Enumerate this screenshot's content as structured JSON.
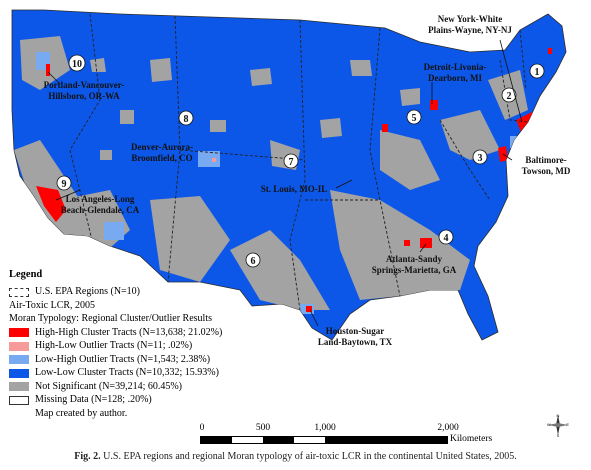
{
  "map": {
    "region_numbers": [
      "1",
      "2",
      "3",
      "4",
      "5",
      "6",
      "7",
      "8",
      "9",
      "10"
    ],
    "labels": {
      "new_york": [
        "New York-White",
        "Plains-Wayne, NY-NJ"
      ],
      "detroit": [
        "Detroit-Livonia-",
        "Dearborn, MI"
      ],
      "baltimore": [
        "Baltimore-",
        "Towson, MD"
      ],
      "atlanta": [
        "Atlanta-Sandy",
        "Springs-Marietta, GA"
      ],
      "houston": [
        "Houston-Sugar",
        "Land-Baytown, TX"
      ],
      "st_louis": [
        "St. Louis, MO-IL"
      ],
      "denver": [
        "Denver-Aurora-",
        "Broomfield, CO"
      ],
      "los_angeles": [
        "Los Angeles-Long",
        "Beach-Glendale, CA"
      ],
      "portland": [
        "Portland-Vancouver-",
        "Hillsboro, OR-WA"
      ]
    },
    "colors": {
      "high_high": "#ff0000",
      "high_low": "#f79a9a",
      "low_high": "#78aaf2",
      "low_low": "#0c57e8",
      "not_significant": "#a3a3a3",
      "missing": "#ffffff"
    }
  },
  "legend": {
    "title": "Legend",
    "regions": "U.S. EPA Regions (N=10)",
    "dataset": "Air-Toxic LCR, 2005",
    "typology": "Moran Typology: Regional Cluster/Outlier Results",
    "items": [
      {
        "label": "High-High Cluster Tracts (N=13,638; 21.02%)",
        "color": "#ff0000"
      },
      {
        "label": "High-Low Outlier Tracts (N=11; .02%)",
        "color": "#f79a9a"
      },
      {
        "label": "Low-High Outlier Tracts (N=1,543; 2.38%)",
        "color": "#78aaf2"
      },
      {
        "label": "Low-Low Cluster Tracts (N=10,332; 15.93%)",
        "color": "#0c57e8"
      },
      {
        "label": "Not Significant (N=39,214; 60.45%)",
        "color": "#a3a3a3"
      },
      {
        "label": "Missing Data (N=128; .20%)",
        "color": "#ffffff"
      }
    ],
    "credit": "Map created by author."
  },
  "scale": {
    "ticks": [
      "0",
      "500",
      "1,000",
      "2,000"
    ],
    "unit": "Kilometers"
  },
  "compass": {
    "n": "N",
    "s": "S",
    "e": "E",
    "w": "W"
  },
  "caption": {
    "label": "Fig. 2.",
    "text": "U.S. EPA regions and regional Moran typology of air-toxic LCR in the continental United States, 2005."
  }
}
